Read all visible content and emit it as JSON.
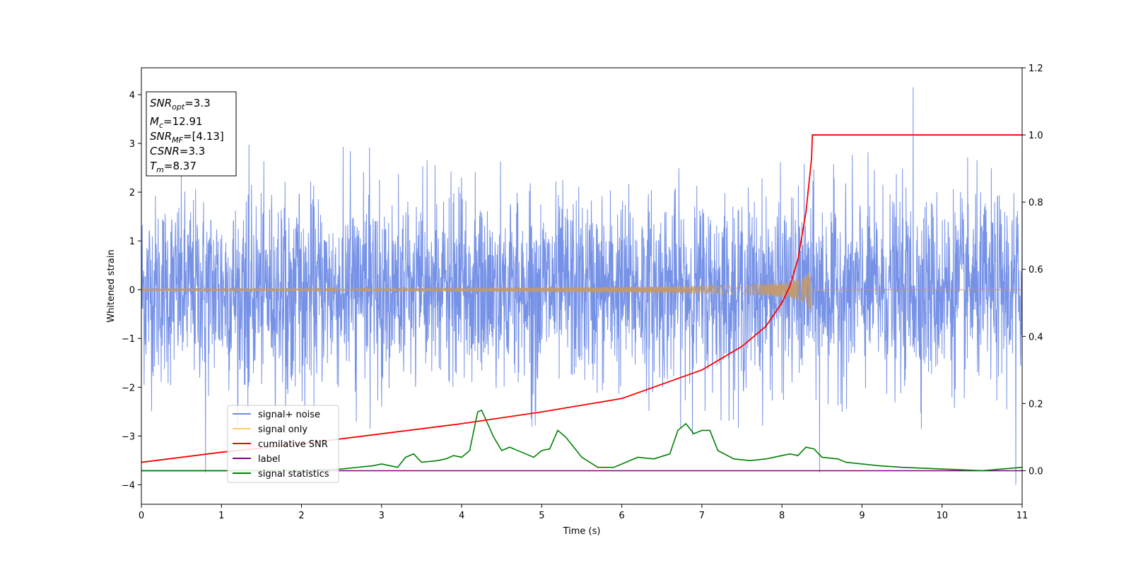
{
  "chart_data": {
    "type": "line",
    "xlabel": "Time (s)",
    "ylabel": "Whitened strain",
    "xlim": [
      0,
      11
    ],
    "ylim": [
      -4.4,
      4.55
    ],
    "y2lim": [
      -0.1,
      1.2
    ],
    "x_ticks": [
      0,
      1,
      2,
      3,
      4,
      5,
      6,
      7,
      8,
      9,
      10,
      11
    ],
    "y_ticks": [
      -4,
      -3,
      -2,
      -1,
      0,
      1,
      2,
      3,
      4
    ],
    "y2_ticks": [
      0.0,
      0.2,
      0.4,
      0.6,
      0.8,
      1.0,
      1.2
    ],
    "x_tick_labels": [
      "0",
      "1",
      "2",
      "3",
      "4",
      "5",
      "6",
      "7",
      "8",
      "9",
      "10",
      "11"
    ],
    "y_tick_labels": [
      "−4",
      "−3",
      "−2",
      "−1",
      "0",
      "1",
      "2",
      "3",
      "4"
    ],
    "y2_tick_labels": [
      "0.0",
      "0.2",
      "0.4",
      "0.6",
      "0.8",
      "1.0",
      "1.2"
    ],
    "grid": false,
    "legend_position": "lower-left",
    "legend": [
      {
        "label": "signal+ noise",
        "color": "#6f8ce6"
      },
      {
        "label": "signal only",
        "color": "#ffcc66"
      },
      {
        "label": "cumilative SNR",
        "color": "#ff0000"
      },
      {
        "label": "label",
        "color": "#800080"
      },
      {
        "label": "signal statistics",
        "color": "#008000"
      }
    ],
    "annotation": {
      "snr_opt": {
        "base": "SNR",
        "sub": "opt",
        "value": "=3.3"
      },
      "mc": {
        "base": "M",
        "sub": "c",
        "value": "=12.91"
      },
      "snr_mf": {
        "base": "SNR",
        "sub": "MF",
        "value": "=[4.13]"
      },
      "csnr": {
        "base": "CSNR",
        "sub": "",
        "value": "=3.3"
      },
      "tm": {
        "base": "T",
        "sub": "m",
        "value": "=8.37"
      }
    },
    "noise_series": {
      "name": "signal+ noise",
      "axis": "left",
      "x_range": [
        0,
        11
      ],
      "sigma": 1.0,
      "spikes": [
        [
          0.8,
          -3.75
        ],
        [
          9.64,
          4.15
        ],
        [
          11.0,
          2.9
        ],
        [
          8.47,
          -3.75
        ],
        [
          10.92,
          -4.0
        ]
      ]
    },
    "signal_series": {
      "name": "signal only",
      "axis": "left",
      "x_range": [
        0,
        8.37
      ],
      "peak_time": 8.37,
      "peak_amplitude": 0.5
    },
    "snr_series": {
      "name": "cumilative SNR",
      "axis": "right",
      "x": [
        0,
        1,
        2,
        3,
        4,
        5,
        6,
        7,
        7.5,
        7.8,
        8.0,
        8.1,
        8.2,
        8.3,
        8.37,
        8.38,
        11
      ],
      "y": [
        0.025,
        0.055,
        0.08,
        0.11,
        0.14,
        0.175,
        0.215,
        0.3,
        0.37,
        0.43,
        0.5,
        0.55,
        0.63,
        0.77,
        0.93,
        1.0,
        1.0
      ]
    },
    "label_series": {
      "name": "label",
      "axis": "right",
      "x": [
        0,
        11
      ],
      "y": [
        0.0,
        0.0
      ]
    },
    "stats_series": {
      "name": "signal statistics",
      "axis": "right",
      "x": [
        0,
        0.5,
        1.0,
        1.5,
        2.0,
        2.5,
        2.9,
        3.0,
        3.2,
        3.3,
        3.4,
        3.5,
        3.7,
        3.8,
        3.9,
        4.0,
        4.1,
        4.2,
        4.25,
        4.4,
        4.5,
        4.6,
        4.7,
        4.8,
        4.9,
        5.0,
        5.1,
        5.2,
        5.3,
        5.5,
        5.7,
        5.9,
        6.0,
        6.2,
        6.4,
        6.6,
        6.7,
        6.8,
        6.9,
        7.0,
        7.1,
        7.2,
        7.4,
        7.6,
        7.8,
        8.0,
        8.1,
        8.2,
        8.3,
        8.4,
        8.5,
        8.7,
        8.8,
        9.0,
        9.2,
        9.5,
        10.0,
        10.5,
        11.0
      ],
      "y": [
        0.0,
        0.0,
        0.0,
        0.0,
        0.0,
        0.005,
        0.015,
        0.02,
        0.01,
        0.04,
        0.05,
        0.025,
        0.03,
        0.035,
        0.045,
        0.04,
        0.06,
        0.175,
        0.18,
        0.1,
        0.06,
        0.07,
        0.06,
        0.05,
        0.04,
        0.06,
        0.065,
        0.12,
        0.1,
        0.04,
        0.01,
        0.01,
        0.02,
        0.04,
        0.035,
        0.05,
        0.12,
        0.14,
        0.11,
        0.12,
        0.12,
        0.06,
        0.035,
        0.03,
        0.035,
        0.045,
        0.05,
        0.045,
        0.07,
        0.065,
        0.04,
        0.035,
        0.025,
        0.02,
        0.015,
        0.01,
        0.005,
        0.0,
        0.01
      ]
    }
  }
}
